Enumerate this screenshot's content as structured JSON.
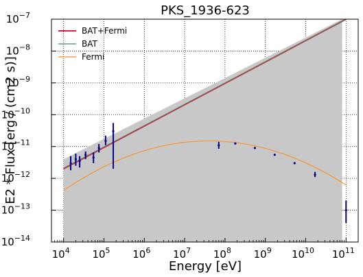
{
  "chart_data": {
    "type": "line",
    "title": "PKS_1936-623",
    "xlabel": "Energy [eV]",
    "ylabel": "E2 * Flux [erg / (cm2 s)]",
    "x_scale": "log",
    "y_scale": "log",
    "xlim": [
      5000,
      200000000000
    ],
    "ylim": [
      1e-14,
      1e-07
    ],
    "grid": true,
    "grid_style": "dotted",
    "legend_position": "top-left",
    "x_ticks": [
      {
        "value": 10000,
        "base": "10",
        "exp": "4"
      },
      {
        "value": 100000,
        "base": "10",
        "exp": "5"
      },
      {
        "value": 1000000,
        "base": "10",
        "exp": "6"
      },
      {
        "value": 10000000,
        "base": "10",
        "exp": "7"
      },
      {
        "value": 100000000,
        "base": "10",
        "exp": "8"
      },
      {
        "value": 1000000000,
        "base": "10",
        "exp": "9"
      },
      {
        "value": 10000000000,
        "base": "10",
        "exp": "10"
      },
      {
        "value": 100000000000,
        "base": "10",
        "exp": "11"
      }
    ],
    "y_ticks": [
      {
        "value": 1e-14,
        "base": "10",
        "exp": "−14"
      },
      {
        "value": 1e-13,
        "base": "10",
        "exp": "−13"
      },
      {
        "value": 1e-12,
        "base": "10",
        "exp": "−12"
      },
      {
        "value": 1e-11,
        "base": "10",
        "exp": "−11"
      },
      {
        "value": 1e-10,
        "base": "10",
        "exp": "−10"
      },
      {
        "value": 1e-09,
        "base": "10",
        "exp": "−9"
      },
      {
        "value": 1e-08,
        "base": "10",
        "exp": "−8"
      },
      {
        "value": 1e-07,
        "base": "10",
        "exp": "−7"
      }
    ],
    "band": {
      "color": "#c8c8c8",
      "x_range": [
        10000,
        80000000000
      ],
      "upper": [
        [
          10000,
          4e-12
        ],
        [
          80000000000,
          1e-07
        ]
      ],
      "lower_floor": 1e-14
    },
    "series": [
      {
        "name": "BAT+Fermi",
        "color": "#e0203c",
        "width": 2,
        "points": [
          [
            10000,
            2e-12
          ],
          [
            100000000000,
            1e-07
          ]
        ]
      },
      {
        "name": "BAT",
        "color": "#4a8a6a",
        "width": 1,
        "points": [
          [
            10000,
            2.1e-12
          ],
          [
            100000000000,
            1e-07
          ]
        ]
      },
      {
        "name": "Fermi",
        "color": "#ff8c1a",
        "width": 1,
        "peak_x": 40000000,
        "peak_y": 1.5e-11,
        "curvature": 0.12,
        "x_range": [
          10000,
          100000000000
        ]
      }
    ],
    "overlay_line": {
      "color": "#8a5a50",
      "points": [
        [
          10000,
          2e-12
        ],
        [
          100000000000,
          1e-07
        ]
      ]
    },
    "data_points": [
      {
        "x": 15000,
        "y": 3e-12,
        "ylo": 1.8e-12,
        "yhi": 5e-12
      },
      {
        "x": 20000,
        "y": 4e-12,
        "ylo": 2.5e-12,
        "yhi": 6e-12
      },
      {
        "x": 25000,
        "y": 3.5e-12,
        "ylo": 2.2e-12,
        "yhi": 5e-12
      },
      {
        "x": 35000,
        "y": 5.5e-12,
        "ylo": 4e-12,
        "yhi": 7e-12
      },
      {
        "x": 55000,
        "y": 4.5e-12,
        "ylo": 3e-12,
        "yhi": 6.5e-12
      },
      {
        "x": 75000,
        "y": 9e-12,
        "ylo": 6.5e-12,
        "yhi": 1.2e-11
      },
      {
        "x": 110000,
        "y": 1.5e-11,
        "ylo": 1.1e-11,
        "yhi": 2.2e-11
      },
      {
        "x": 170000,
        "y": 3e-11,
        "ylo": 2e-12,
        "yhi": 5.5e-11
      },
      {
        "x": 70000000,
        "y": 1.1e-11,
        "ylo": 8.5e-12,
        "yhi": 1.4e-11
      },
      {
        "x": 180000000,
        "y": 1.25e-11,
        "ylo": 1.2e-11,
        "yhi": 1.3e-11
      },
      {
        "x": 550000000,
        "y": 9e-12,
        "ylo": 8.5e-12,
        "yhi": 9.5e-12
      },
      {
        "x": 1700000000,
        "y": 5.5e-12,
        "ylo": 5.2e-12,
        "yhi": 5.8e-12
      },
      {
        "x": 5300000000,
        "y": 3e-12,
        "ylo": 2.8e-12,
        "yhi": 3.2e-12
      },
      {
        "x": 17000000000,
        "y": 1.3e-12,
        "ylo": 1.1e-12,
        "yhi": 1.6e-12
      },
      {
        "x": 100000000000,
        "y": 1e-13,
        "ylo": 4e-14,
        "yhi": 2e-13
      }
    ],
    "point_color": "#00008b"
  }
}
